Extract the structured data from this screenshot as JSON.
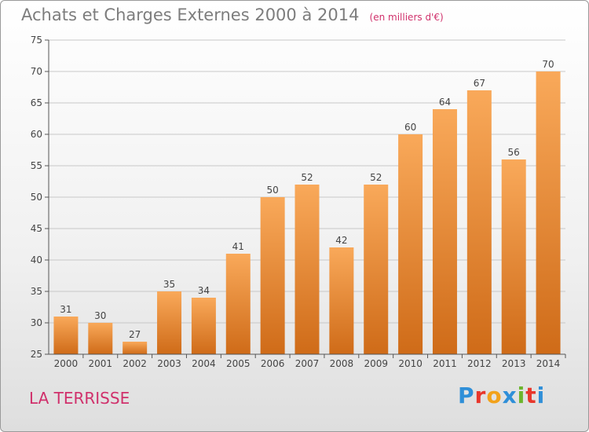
{
  "header": {
    "title": "Achats et Charges Externes 2000 à 2014",
    "unit": "(en milliers d'€)"
  },
  "footer": {
    "commune": "LA TERRISSE",
    "brand": "Proxiti",
    "brand_colors": [
      "#2f8fd8",
      "#e8372c",
      "#f2a21b",
      "#2f8fd8",
      "#6cb52d",
      "#e8372c",
      "#2f8fd8"
    ]
  },
  "colors": {
    "bar_light": "#f9a95a",
    "bar_dark": "#cf6b18",
    "axis": "#555555",
    "grid": "#c8c8c8",
    "text": "#444444"
  },
  "chart_data": {
    "type": "bar",
    "title": "Achats et Charges Externes 2000 à 2014",
    "subtitle": "(en milliers d'€)",
    "categories": [
      "2000",
      "2001",
      "2002",
      "2003",
      "2004",
      "2005",
      "2006",
      "2007",
      "2008",
      "2009",
      "2010",
      "2011",
      "2012",
      "2013",
      "2014"
    ],
    "values": [
      31,
      30,
      27,
      35,
      34,
      41,
      50,
      52,
      42,
      52,
      60,
      64,
      67,
      56,
      70
    ],
    "ylim": [
      25,
      75
    ],
    "yticks": [
      25,
      30,
      35,
      40,
      45,
      50,
      55,
      60,
      65,
      70,
      75
    ],
    "grid": true,
    "data_labels": true
  }
}
